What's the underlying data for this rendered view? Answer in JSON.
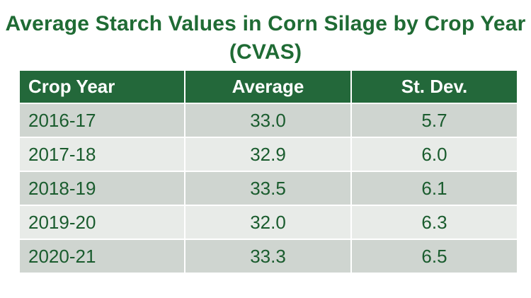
{
  "title": "Average Starch Values in Corn Silage by Crop Year (CVAS)",
  "title_line1": "Average Starch Values in Corn Silage by Crop Year",
  "title_line2": "(CVAS)",
  "colors": {
    "header_bg": "#23683a",
    "title_text": "#1f6b34",
    "row_odd": "#cfd5d0",
    "row_even": "#e8ebe8"
  },
  "table": {
    "headers": [
      "Crop Year",
      "Average",
      "St. Dev."
    ],
    "rows": [
      [
        "2016-17",
        "33.0",
        "5.7"
      ],
      [
        "2017-18",
        "32.9",
        "6.0"
      ],
      [
        "2018-19",
        "33.5",
        "6.1"
      ],
      [
        "2019-20",
        "32.0",
        "6.3"
      ],
      [
        "2020-21",
        "33.3",
        "6.5"
      ]
    ]
  }
}
